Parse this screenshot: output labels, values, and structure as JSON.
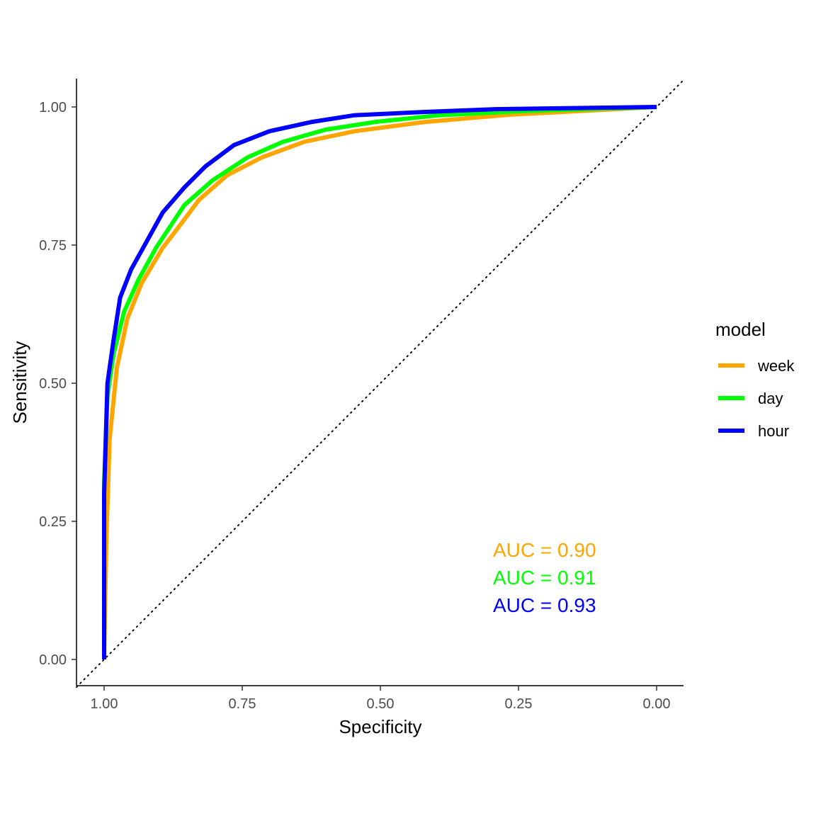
{
  "chart_data": {
    "type": "line",
    "xlabel": "Specificity",
    "ylabel": "Sensitivity",
    "xlim": [
      1.05,
      -0.05
    ],
    "ylim": [
      -0.05,
      1.05
    ],
    "x_reversed": true,
    "x_ticks": [
      1.0,
      0.75,
      0.5,
      0.25,
      0.0
    ],
    "x_tick_labels": [
      "1.00",
      "0.75",
      "0.50",
      "0.25",
      "0.00"
    ],
    "y_ticks": [
      0.0,
      0.25,
      0.5,
      0.75,
      1.0
    ],
    "y_tick_labels": [
      "0.00",
      "0.25",
      "0.50",
      "0.75",
      "1.00"
    ],
    "grid": false,
    "legend": {
      "title": "model",
      "placement": "right"
    },
    "reference_line": {
      "style": "dotted",
      "from": [
        1,
        0
      ],
      "to": [
        0,
        1
      ]
    },
    "series": [
      {
        "name": "week",
        "color": "#FFA500",
        "auc_label": "AUC = 0.90",
        "specificity": [
          1.0,
          0.996,
          0.99,
          0.977,
          0.958,
          0.932,
          0.894,
          0.855,
          0.829,
          0.778,
          0.714,
          0.637,
          0.547,
          0.419,
          0.265,
          0.0
        ],
        "sensitivity": [
          0.0,
          0.219,
          0.399,
          0.527,
          0.617,
          0.681,
          0.745,
          0.796,
          0.831,
          0.876,
          0.909,
          0.937,
          0.956,
          0.973,
          0.986,
          1.0
        ]
      },
      {
        "name": "day",
        "color": "#00FF00",
        "auc_label": "AUC = 0.91",
        "specificity": [
          1.0,
          1.0,
          0.994,
          0.983,
          0.964,
          0.938,
          0.906,
          0.855,
          0.804,
          0.74,
          0.676,
          0.599,
          0.509,
          0.394,
          0.253,
          0.0
        ],
        "sensitivity": [
          0.0,
          0.32,
          0.476,
          0.553,
          0.629,
          0.687,
          0.745,
          0.822,
          0.867,
          0.909,
          0.937,
          0.959,
          0.973,
          0.985,
          0.992,
          1.0
        ]
      },
      {
        "name": "hour",
        "color": "#0000FF",
        "auc_label": "AUC = 0.93",
        "specificity": [
          1.0,
          1.0,
          0.994,
          0.983,
          0.971,
          0.951,
          0.926,
          0.894,
          0.855,
          0.817,
          0.765,
          0.701,
          0.624,
          0.547,
          0.419,
          0.291,
          0.0
        ],
        "sensitivity": [
          0.0,
          0.3,
          0.5,
          0.578,
          0.655,
          0.706,
          0.751,
          0.809,
          0.854,
          0.892,
          0.931,
          0.956,
          0.973,
          0.985,
          0.991,
          0.996,
          1.0
        ]
      }
    ]
  }
}
